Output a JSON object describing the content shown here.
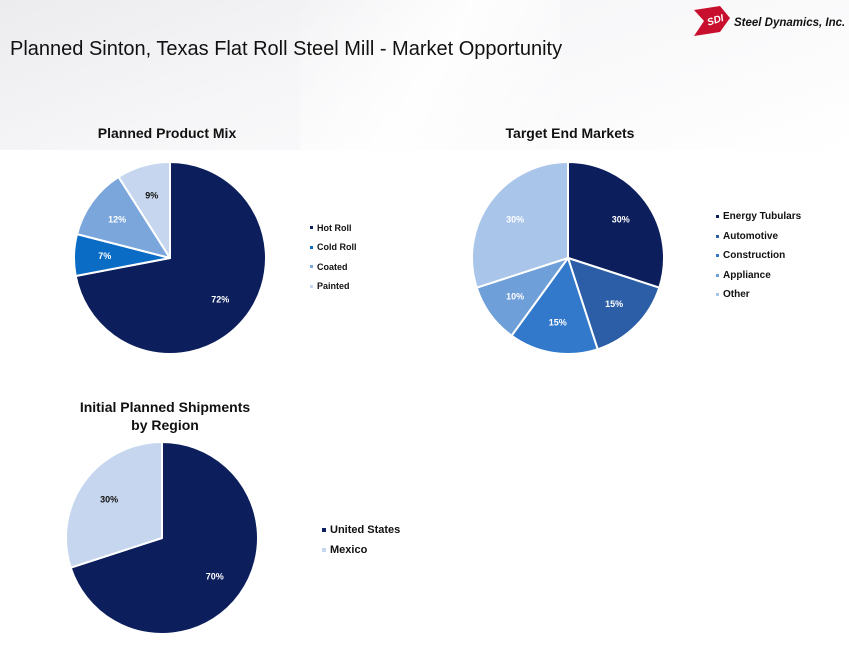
{
  "header": {
    "title": "Planned Sinton, Texas Flat Roll Steel Mill - Market Opportunity",
    "logo_mark": "SDI",
    "logo_text": "Steel Dynamics, Inc."
  },
  "colors": {
    "navy": "#0c1f5c",
    "blue_dark": "#2b5ea7",
    "blue": "#3279cc",
    "blue_mid": "#6f9fd8",
    "blue_light": "#a9c6ea",
    "blue_pale": "#c5d6ee",
    "cold_roll": "#0a6cc5",
    "brand_red": "#c8102e"
  },
  "chart_data": [
    {
      "type": "pie",
      "title": "Planned Product Mix",
      "categories": [
        "Hot Roll",
        "Cold Roll",
        "Coated",
        "Painted"
      ],
      "values": [
        72,
        7,
        12,
        9
      ],
      "labels": [
        "72%",
        "7%",
        "12%",
        "9%"
      ],
      "colors": [
        "#0c1f5c",
        "#0a6cc5",
        "#7aa6dc",
        "#c5d6ee"
      ],
      "label_colors": [
        "#ffffff",
        "#ffffff",
        "#ffffff",
        "#111111"
      ],
      "start_angle": 0,
      "legend": "right"
    },
    {
      "type": "pie",
      "title": "Target End Markets",
      "categories": [
        "Energy Tubulars",
        "Automotive",
        "Construction",
        "Appliance",
        "Other"
      ],
      "values": [
        30,
        15,
        15,
        10,
        30
      ],
      "labels": [
        "30%",
        "15%",
        "15%",
        "10%",
        "30%"
      ],
      "colors": [
        "#0c1f5c",
        "#2b5ea7",
        "#3279cc",
        "#6f9fd8",
        "#a9c6ea"
      ],
      "label_colors": [
        "#ffffff",
        "#ffffff",
        "#ffffff",
        "#ffffff",
        "#ffffff"
      ],
      "start_angle": 0,
      "legend": "right"
    },
    {
      "type": "pie",
      "title": "Initial Planned Shipments by Region",
      "title_lines": [
        "Initial Planned Shipments",
        "by Region"
      ],
      "categories": [
        "United States",
        "Mexico"
      ],
      "values": [
        70,
        30
      ],
      "labels": [
        "70%",
        "30%"
      ],
      "colors": [
        "#0c1f5c",
        "#c5d6ee"
      ],
      "label_colors": [
        "#ffffff",
        "#111111"
      ],
      "start_angle": 0,
      "legend": "right"
    }
  ]
}
